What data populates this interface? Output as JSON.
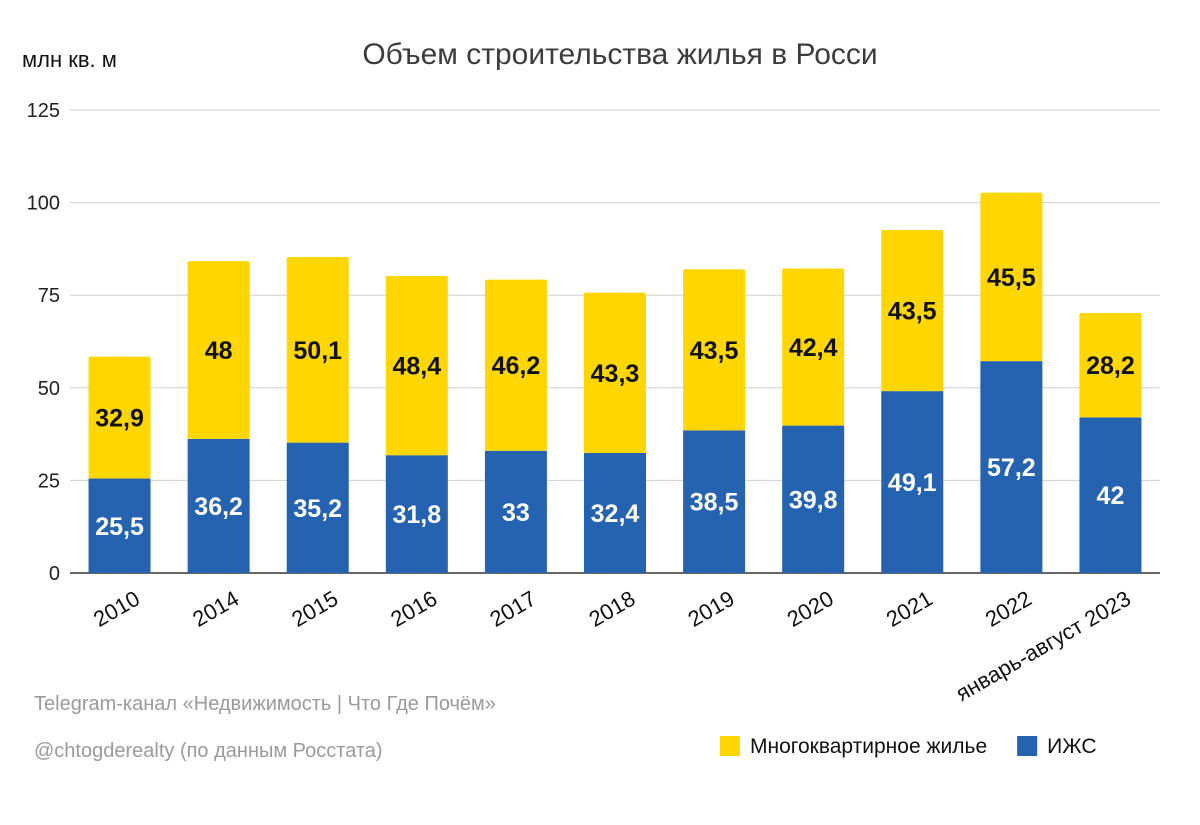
{
  "chart_data": {
    "type": "bar",
    "stacked": true,
    "title": "Объем строительства жилья в Росси",
    "ylabel": "млн кв. м",
    "ylim": [
      0,
      125
    ],
    "yticks": [
      0,
      25,
      50,
      75,
      100,
      125
    ],
    "grid": true,
    "legend_position": "bottom-right",
    "categories": [
      "2010",
      "2014",
      "2015",
      "2016",
      "2017",
      "2018",
      "2019",
      "2020",
      "2021",
      "2022",
      "январь-август 2023"
    ],
    "series": [
      {
        "name": "ИЖС",
        "color": "#2563b1",
        "label_color": "#ffffff",
        "values": [
          25.5,
          36.2,
          35.2,
          31.8,
          33,
          32.4,
          38.5,
          39.8,
          49.1,
          57.2,
          42
        ],
        "labels": [
          "25,5",
          "36,2",
          "35,2",
          "31,8",
          "33",
          "32,4",
          "38,5",
          "39,8",
          "49,1",
          "57,2",
          "42"
        ]
      },
      {
        "name": "Многоквартирное жилье",
        "color": "#ffd600",
        "label_color": "#111111",
        "values": [
          32.9,
          48,
          50.1,
          48.4,
          46.2,
          43.3,
          43.5,
          42.4,
          43.5,
          45.5,
          28.2
        ],
        "labels": [
          "32,9",
          "48",
          "50,1",
          "48,4",
          "46,2",
          "43,3",
          "43,5",
          "42,4",
          "43,5",
          "45,5",
          "28,2"
        ]
      }
    ],
    "legend_order": [
      1,
      0
    ]
  },
  "source": {
    "line1": "Telegram-канал «Недвижимость | Что Где Почём»",
    "line2": "@chtogderealty (по данным Росстата)"
  }
}
